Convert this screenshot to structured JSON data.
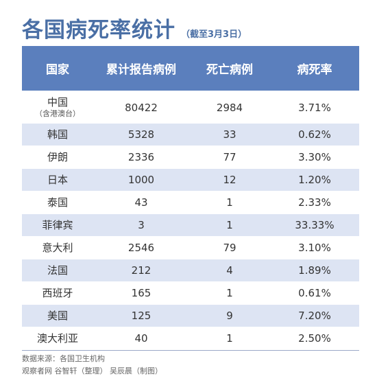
{
  "title": "各国病死率统计",
  "subtitle": "（截至3月3日）",
  "table": {
    "headers": [
      "国家",
      "累计报告病例",
      "死亡病例",
      "病死率"
    ],
    "rows": [
      {
        "country": "中国",
        "country_note": "（含港澳台）",
        "cases": "80422",
        "deaths": "2984",
        "rate": "3.71%"
      },
      {
        "country": "韩国",
        "cases": "5328",
        "deaths": "33",
        "rate": "0.62%"
      },
      {
        "country": "伊朗",
        "cases": "2336",
        "deaths": "77",
        "rate": "3.30%"
      },
      {
        "country": "日本",
        "cases": "1000",
        "deaths": "12",
        "rate": "1.20%"
      },
      {
        "country": "泰国",
        "cases": "43",
        "deaths": "1",
        "rate": "2.33%"
      },
      {
        "country": "菲律宾",
        "cases": "3",
        "deaths": "1",
        "rate": "33.33%"
      },
      {
        "country": "意大利",
        "cases": "2546",
        "deaths": "79",
        "rate": "3.10%"
      },
      {
        "country": "法国",
        "cases": "212",
        "deaths": "4",
        "rate": "1.89%"
      },
      {
        "country": "西班牙",
        "cases": "165",
        "deaths": "1",
        "rate": "0.61%"
      },
      {
        "country": "美国",
        "cases": "125",
        "deaths": "9",
        "rate": "7.20%"
      },
      {
        "country": "澳大利亚",
        "cases": "40",
        "deaths": "1",
        "rate": "2.50%"
      }
    ]
  },
  "footer": {
    "source": "数据来源：各国卫生机构",
    "credit": "观察者网 谷智轩（整理） 吴辰晨（制图）"
  },
  "colors": {
    "title": "#4a6fa5",
    "header_bg": "#5b7fbd",
    "stripe": "#dde4f3"
  }
}
